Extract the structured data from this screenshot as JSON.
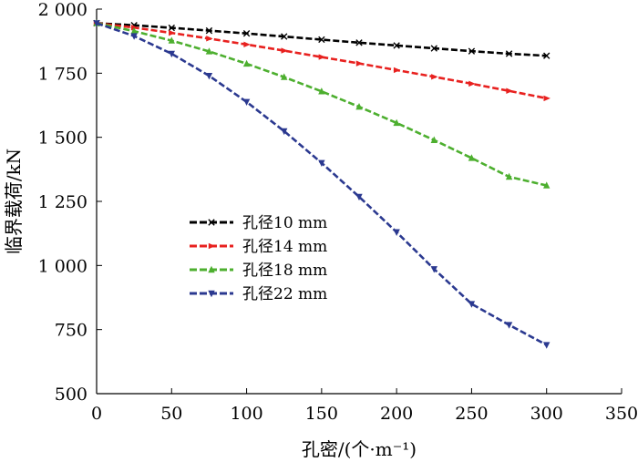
{
  "chart_data": {
    "type": "line",
    "title": "",
    "xlabel": "孔密/(个·m⁻¹)",
    "ylabel": "临界载荷/kN",
    "xlim": [
      0,
      350
    ],
    "ylim": [
      500,
      2000
    ],
    "x_ticks": [
      0,
      50,
      100,
      150,
      200,
      250,
      300,
      350
    ],
    "x_tick_labels": [
      "0",
      "50",
      "100",
      "150",
      "200",
      "250",
      "300",
      "350"
    ],
    "y_ticks": [
      500,
      750,
      1000,
      1250,
      1500,
      1750,
      2000
    ],
    "y_tick_labels": [
      "500",
      "750",
      "1 000",
      "1 250",
      "1 500",
      "1 750",
      "2 000"
    ],
    "grid": false,
    "legend_position": "center-left",
    "x": [
      0,
      25,
      50,
      75,
      100,
      125,
      150,
      175,
      200,
      225,
      250,
      275,
      300
    ],
    "series": [
      {
        "name": "孔径10 mm",
        "color": "#000000",
        "marker": "cross",
        "values": [
          1945,
          1937,
          1927,
          1916,
          1905,
          1893,
          1881,
          1869,
          1858,
          1847,
          1836,
          1826,
          1818
        ]
      },
      {
        "name": "孔径14 mm",
        "color": "#e8211f",
        "marker": "tri-right",
        "values": [
          1945,
          1928,
          1907,
          1885,
          1862,
          1838,
          1813,
          1788,
          1762,
          1736,
          1709,
          1681,
          1652
        ]
      },
      {
        "name": "孔径18 mm",
        "color": "#4daf2f",
        "marker": "triangle-up",
        "values": [
          1945,
          1914,
          1877,
          1835,
          1787,
          1735,
          1679,
          1619,
          1556,
          1489,
          1419,
          1346,
          1312
        ]
      },
      {
        "name": "孔径22 mm",
        "color": "#2b3990",
        "marker": "triangle-down",
        "values": [
          1945,
          1895,
          1826,
          1740,
          1638,
          1524,
          1400,
          1268,
          1130,
          986,
          850,
          768,
          690
        ]
      }
    ]
  }
}
